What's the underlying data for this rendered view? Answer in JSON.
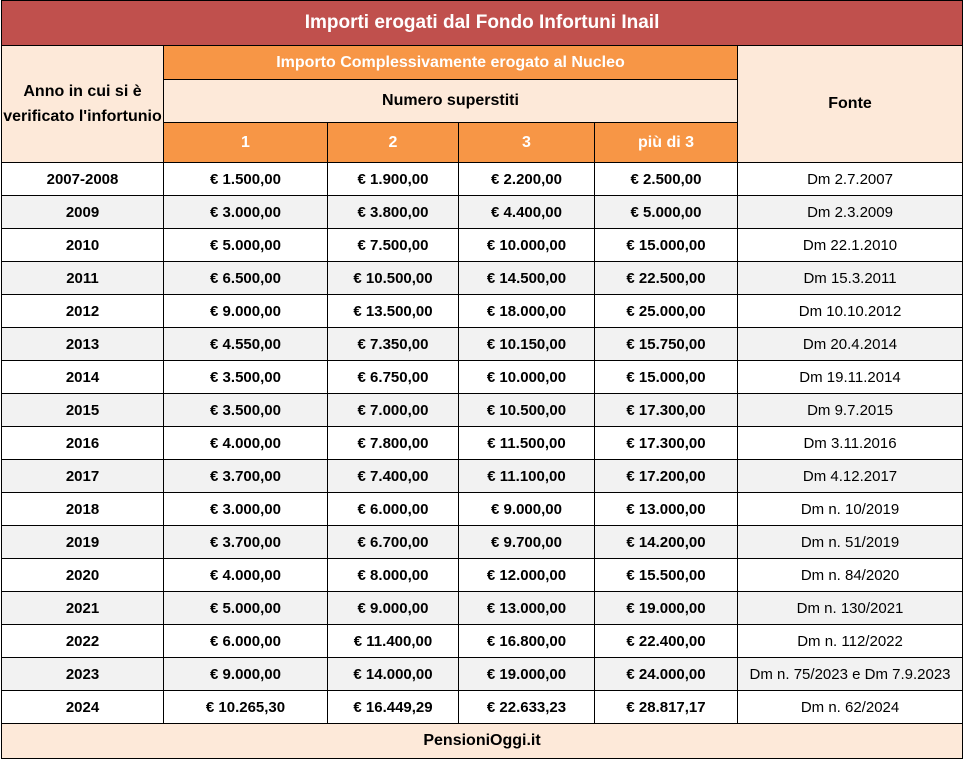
{
  "title": "Importi erogati dal Fondo Infortuni Inail",
  "header": {
    "year_col": "Anno in cui si è verificato l'infortunio",
    "importo_group": "Importo Complessivamente erogato al Nucleo",
    "numero_group": "Numero superstiti",
    "counts": [
      "1",
      "2",
      "3",
      "più di 3"
    ],
    "fonte_col": "Fonte"
  },
  "rows": [
    {
      "year": "2007-2008",
      "v1": "€ 1.500,00",
      "v2": "€ 1.900,00",
      "v3": "€ 2.200,00",
      "v4": "€ 2.500,00",
      "fonte": "Dm 2.7.2007"
    },
    {
      "year": "2009",
      "v1": "€ 3.000,00",
      "v2": "€ 3.800,00",
      "v3": "€ 4.400,00",
      "v4": "€ 5.000,00",
      "fonte": "Dm 2.3.2009"
    },
    {
      "year": "2010",
      "v1": "€ 5.000,00",
      "v2": "€ 7.500,00",
      "v3": "€ 10.000,00",
      "v4": "€ 15.000,00",
      "fonte": "Dm 22.1.2010"
    },
    {
      "year": "2011",
      "v1": "€ 6.500,00",
      "v2": "€ 10.500,00",
      "v3": "€ 14.500,00",
      "v4": "€ 22.500,00",
      "fonte": "Dm 15.3.2011"
    },
    {
      "year": "2012",
      "v1": "€ 9.000,00",
      "v2": "€ 13.500,00",
      "v3": "€ 18.000,00",
      "v4": "€ 25.000,00",
      "fonte": "Dm 10.10.2012"
    },
    {
      "year": "2013",
      "v1": "€ 4.550,00",
      "v2": "€ 7.350,00",
      "v3": "€ 10.150,00",
      "v4": "€ 15.750,00",
      "fonte": "Dm 20.4.2014"
    },
    {
      "year": "2014",
      "v1": "€ 3.500,00",
      "v2": "€ 6.750,00",
      "v3": "€ 10.000,00",
      "v4": "€ 15.000,00",
      "fonte": "Dm 19.11.2014"
    },
    {
      "year": "2015",
      "v1": "€ 3.500,00",
      "v2": "€ 7.000,00",
      "v3": "€ 10.500,00",
      "v4": "€ 17.300,00",
      "fonte": "Dm 9.7.2015"
    },
    {
      "year": "2016",
      "v1": "€ 4.000,00",
      "v2": "€ 7.800,00",
      "v3": "€ 11.500,00",
      "v4": "€ 17.300,00",
      "fonte": "Dm 3.11.2016"
    },
    {
      "year": "2017",
      "v1": "€ 3.700,00",
      "v2": "€ 7.400,00",
      "v3": "€ 11.100,00",
      "v4": "€ 17.200,00",
      "fonte": "Dm 4.12.2017"
    },
    {
      "year": "2018",
      "v1": "€ 3.000,00",
      "v2": "€ 6.000,00",
      "v3": "€ 9.000,00",
      "v4": "€ 13.000,00",
      "fonte": "Dm n. 10/2019"
    },
    {
      "year": "2019",
      "v1": "€ 3.700,00",
      "v2": "€ 6.700,00",
      "v3": "€ 9.700,00",
      "v4": "€ 14.200,00",
      "fonte": "Dm n. 51/2019"
    },
    {
      "year": "2020",
      "v1": "€ 4.000,00",
      "v2": "€ 8.000,00",
      "v3": "€ 12.000,00",
      "v4": "€ 15.500,00",
      "fonte": "Dm n. 84/2020"
    },
    {
      "year": "2021",
      "v1": "€ 5.000,00",
      "v2": "€ 9.000,00",
      "v3": "€ 13.000,00",
      "v4": "€ 19.000,00",
      "fonte": "Dm n. 130/2021"
    },
    {
      "year": "2022",
      "v1": "€ 6.000,00",
      "v2": "€ 11.400,00",
      "v3": "€ 16.800,00",
      "v4": "€ 22.400,00",
      "fonte": "Dm n. 112/2022"
    },
    {
      "year": "2023",
      "v1": "€ 9.000,00",
      "v2": "€ 14.000,00",
      "v3": "€ 19.000,00",
      "v4": "€ 24.000,00",
      "fonte": "Dm n. 75/2023 e Dm 7.9.2023"
    },
    {
      "year": "2024",
      "v1": "€ 10.265,30",
      "v2": "€ 16.449,29",
      "v3": "€ 22.633,23",
      "v4": "€ 28.817,17",
      "fonte": "Dm n. 62/2024"
    }
  ],
  "footer": "PensioniOggi.it",
  "colors": {
    "title_bg": "#c0504d",
    "orange_header": "#f79646",
    "light_header": "#fde9d9",
    "alt_row": "#f2f2f2"
  }
}
